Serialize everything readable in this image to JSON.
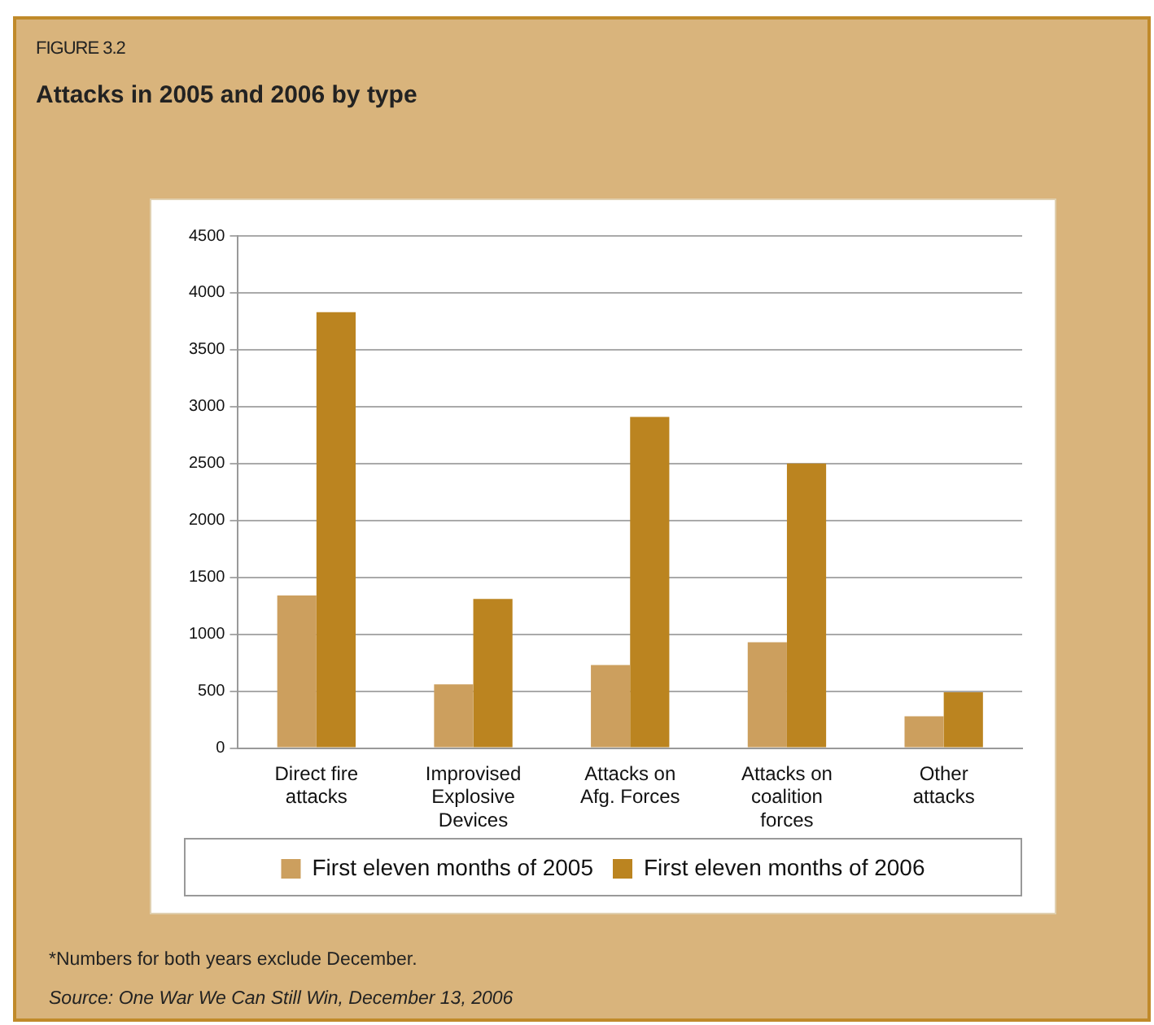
{
  "chart_data": {
    "type": "bar",
    "title": "Attacks in 2005 and 2006 by type",
    "categories": [
      "Direct fire attacks",
      "Improvised Explosive Devices",
      "Attacks on Afg. Forces",
      "Attacks on coalition forces",
      "Other attacks"
    ],
    "series": [
      {
        "name": "First eleven months of 2005",
        "color": "#cc9f5e",
        "values": [
          1340,
          560,
          730,
          930,
          280
        ]
      },
      {
        "name": "First eleven months of 2006",
        "color": "#bb8420",
        "values": [
          3830,
          1310,
          2910,
          2500,
          490
        ]
      }
    ],
    "ylim": [
      0,
      4500
    ],
    "yticks": [
      0,
      500,
      1000,
      1500,
      2000,
      2500,
      3000,
      3500,
      4000,
      4500
    ],
    "grid": "y",
    "legend": "bottom",
    "annotations": [
      "FIGURE 3.2",
      "*Numbers for both years exclude December.",
      "Source: One War We Can Still Win, December 13, 2006"
    ]
  }
}
